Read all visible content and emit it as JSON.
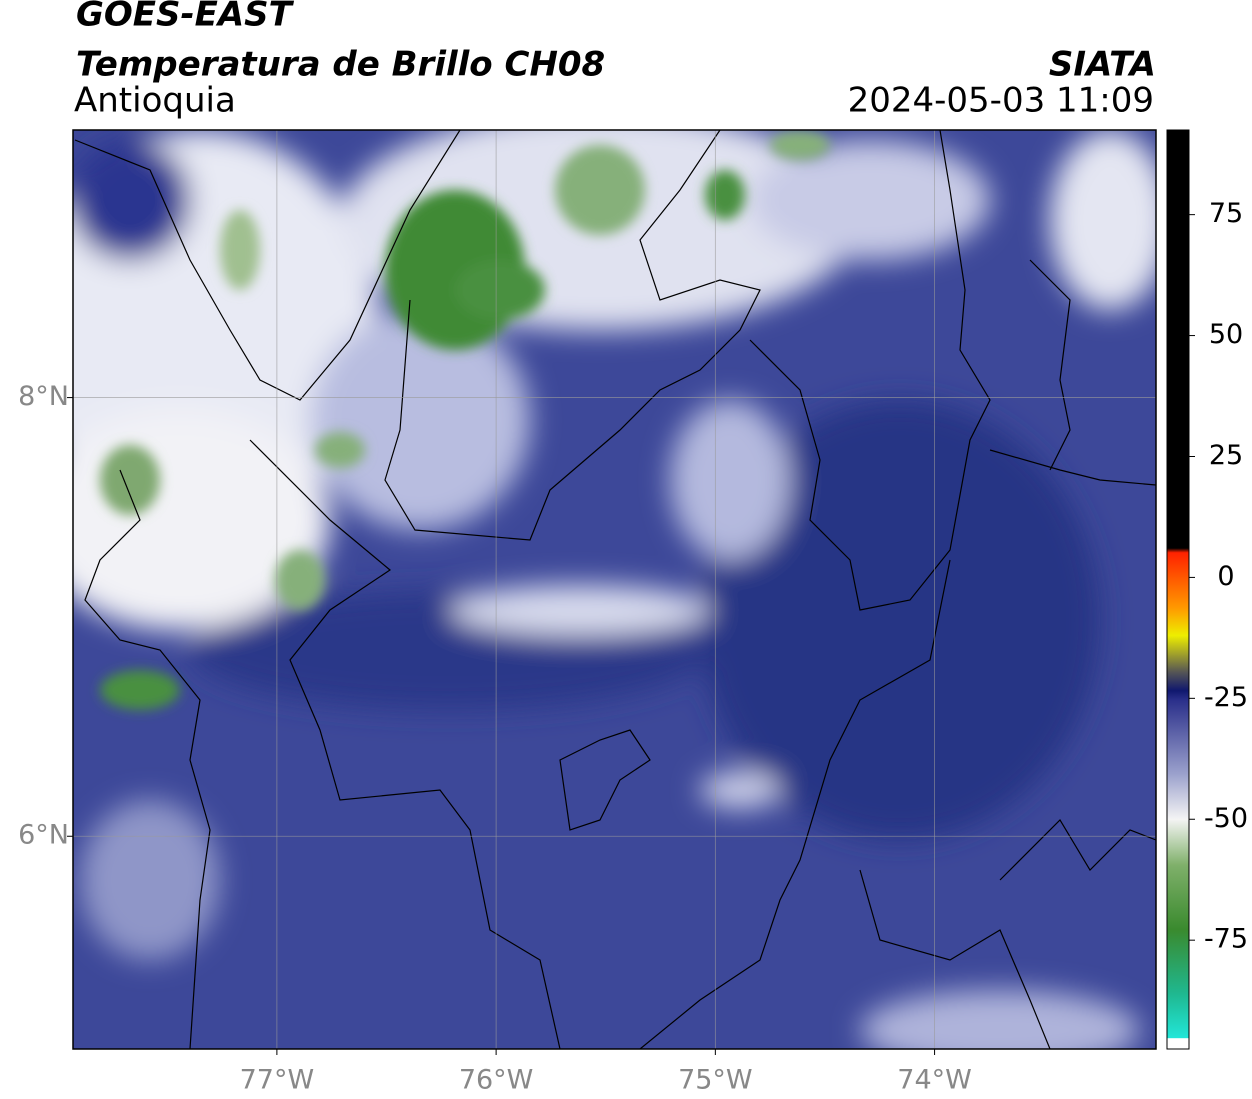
{
  "header": {
    "title": "GOES-EAST",
    "subtitle": "Temperatura de Brillo CH08",
    "region": "Antioquia",
    "source": "SIATA",
    "timestamp": "2024-05-03 11:09"
  },
  "map": {
    "xlim": [
      -77.93,
      -72.99
    ],
    "ylim": [
      5.03,
      9.22
    ],
    "xticks": [
      {
        "value": -77,
        "label": "77°W"
      },
      {
        "value": -76,
        "label": "76°W"
      },
      {
        "value": -75,
        "label": "75°W"
      },
      {
        "value": -74,
        "label": "74°W"
      }
    ],
    "yticks": [
      {
        "value": 6,
        "label": "6°N"
      },
      {
        "value": 8,
        "label": "8°N"
      }
    ],
    "grid": true
  },
  "colorbar": {
    "lim": [
      -97.5,
      92.5
    ],
    "ticks": [
      -75,
      -50,
      -25,
      0,
      25,
      50,
      75
    ]
  }
}
